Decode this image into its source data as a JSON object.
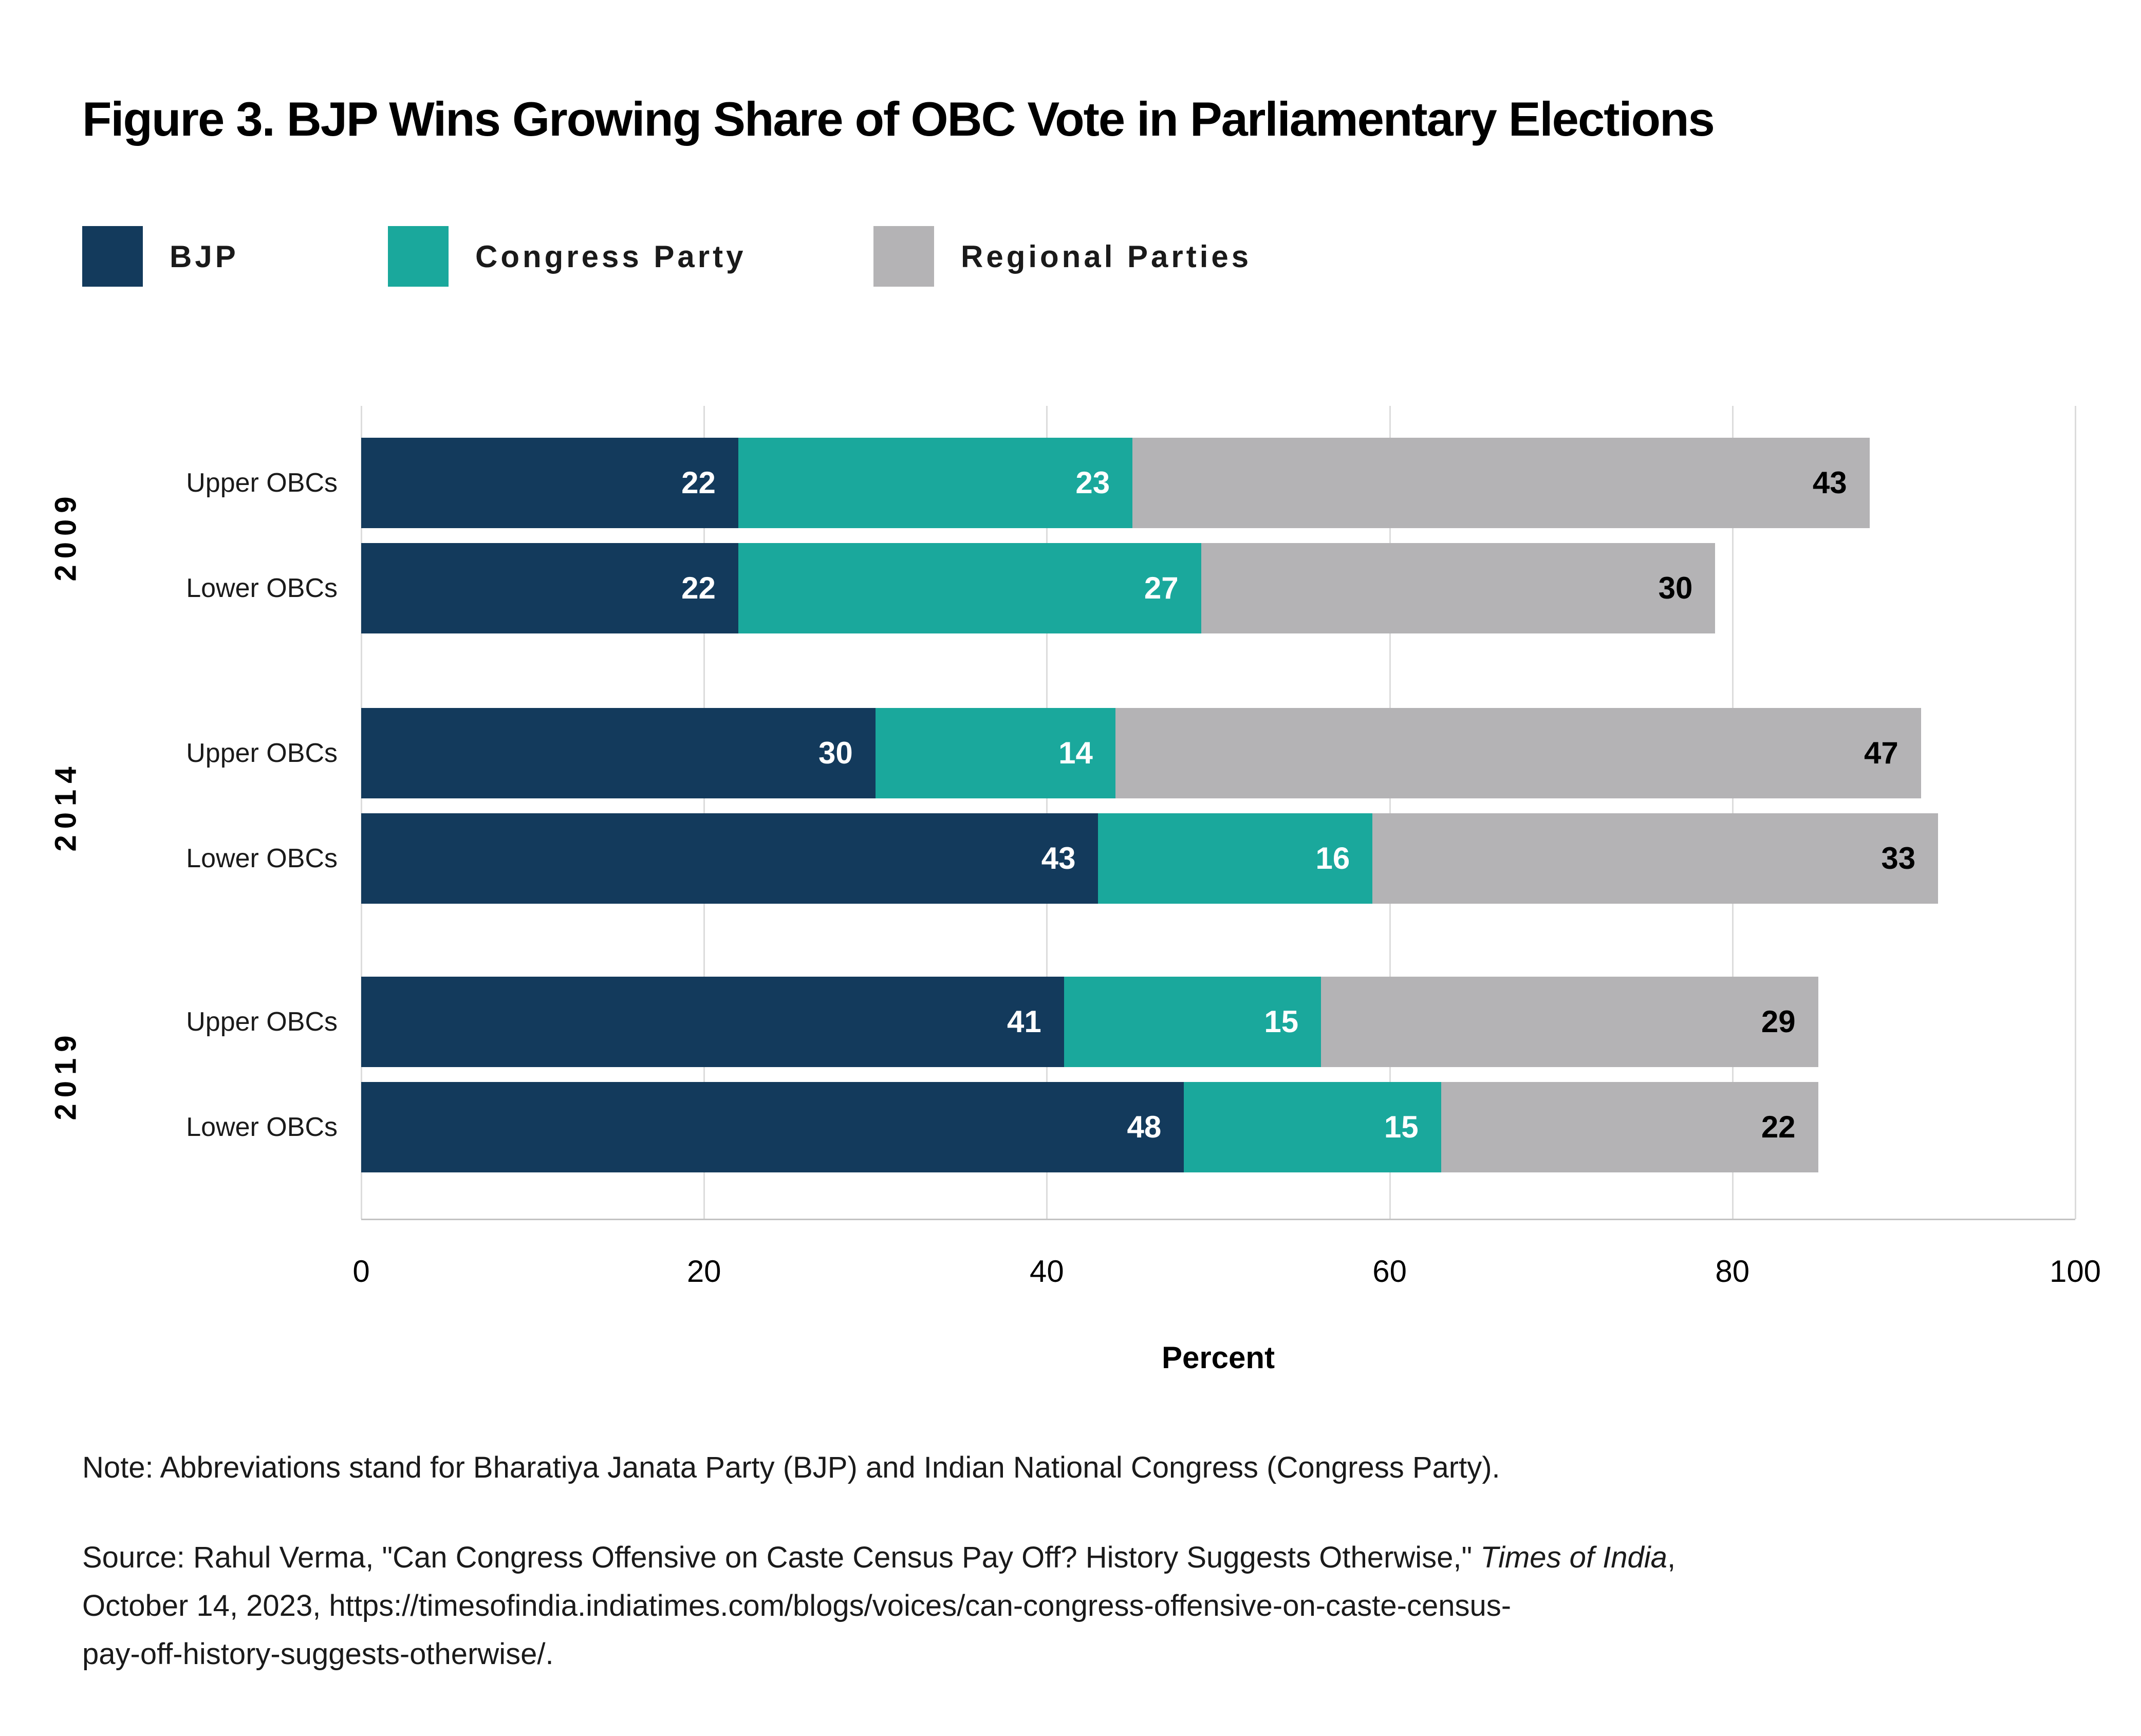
{
  "figure": {
    "title": "Figure 3. BJP Wins Growing Share of OBC Vote in Parliamentary Elections",
    "note": "Note: Abbreviations stand for Bharatiya Janata Party (BJP) and Indian National Congress (Congress Party).",
    "source": {
      "line1_prefix": "Source: Rahul Verma, \"Can Congress Offensive on Caste Census Pay Off? History Suggests Otherwise,\" ",
      "line1_italic": "Times of India",
      "line1_suffix": ",",
      "line2": "October 14, 2023, https://timesofindia.indiatimes.com/blogs/voices/can-congress-offensive-on-caste-census-",
      "line3": "pay-off-history-suggests-otherwise/."
    }
  },
  "chart_data": {
    "type": "bar",
    "orientation": "horizontal",
    "stacked": true,
    "title": "Figure 3. BJP Wins Growing Share of OBC Vote in Parliamentary Elections",
    "xlabel": "Percent",
    "xlim": [
      0,
      100
    ],
    "xticks": [
      0,
      20,
      40,
      60,
      80,
      100
    ],
    "grid": "vertical",
    "legend_position": "top-left",
    "series": [
      {
        "name": "BJP",
        "color": "#133a5c",
        "label_color": "#ffffff"
      },
      {
        "name": "Congress Party",
        "color": "#1aa89c",
        "label_color": "#ffffff"
      },
      {
        "name": "Regional Parties",
        "color": "#b4b3b5",
        "label_color": "#000000"
      }
    ],
    "groups": [
      {
        "year": "2009",
        "rows": [
          {
            "label": "Upper OBCs",
            "values": [
              22,
              23,
              43
            ]
          },
          {
            "label": "Lower OBCs",
            "values": [
              22,
              27,
              30
            ]
          }
        ]
      },
      {
        "year": "2014",
        "rows": [
          {
            "label": "Upper OBCs",
            "values": [
              30,
              14,
              47
            ]
          },
          {
            "label": "Lower OBCs",
            "values": [
              43,
              16,
              33
            ]
          }
        ]
      },
      {
        "year": "2019",
        "rows": [
          {
            "label": "Upper OBCs",
            "values": [
              41,
              15,
              29
            ]
          },
          {
            "label": "Lower OBCs",
            "values": [
              48,
              15,
              22
            ]
          }
        ]
      }
    ]
  }
}
